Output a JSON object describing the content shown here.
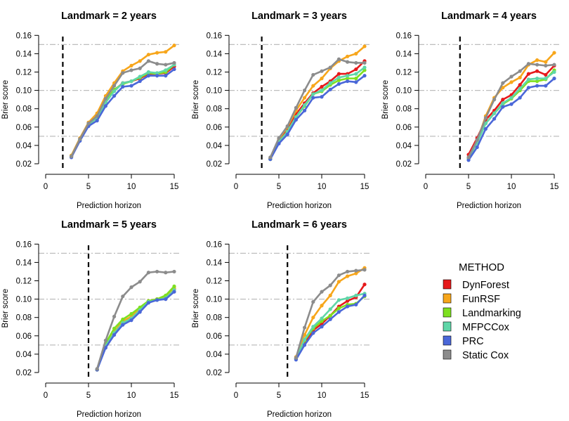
{
  "legend": {
    "title": "METHOD",
    "items": [
      {
        "name": "DynForest",
        "color": "#e6191b"
      },
      {
        "name": "FunRSF",
        "color": "#f7a61b"
      },
      {
        "name": "Landmarking",
        "color": "#7ee020"
      },
      {
        "name": "MFPCCox",
        "color": "#5fd6a8"
      },
      {
        "name": "PRC",
        "color": "#4a67d8"
      },
      {
        "name": "Static Cox",
        "color": "#8c8c8c"
      }
    ]
  },
  "chart_data": [
    {
      "type": "line",
      "title": "Landmark = 2 years",
      "xlabel": "Prediction horizon",
      "ylabel": "Brier score",
      "landmark": 2,
      "xlim": [
        0,
        15
      ],
      "ylim": [
        0.02,
        0.16
      ],
      "xticks": [
        0,
        5,
        10,
        15
      ],
      "yticks": [
        0.02,
        0.04,
        0.06,
        0.08,
        0.1,
        0.12,
        0.14,
        0.16
      ],
      "reference_lines": [
        0.05,
        0.1,
        0.15
      ],
      "x": [
        3,
        4,
        5,
        6,
        7,
        8,
        9,
        10,
        11,
        12,
        13,
        14,
        15
      ],
      "series": [
        {
          "name": "DynForest",
          "values": [
            0.028,
            0.046,
            0.063,
            0.07,
            0.087,
            0.1,
            0.108,
            0.11,
            0.113,
            0.118,
            0.118,
            0.119,
            0.126
          ]
        },
        {
          "name": "FunRSF",
          "values": [
            0.029,
            0.048,
            0.065,
            0.075,
            0.094,
            0.108,
            0.121,
            0.127,
            0.132,
            0.139,
            0.141,
            0.142,
            0.149
          ]
        },
        {
          "name": "Landmarking",
          "values": [
            0.028,
            0.046,
            0.063,
            0.07,
            0.088,
            0.101,
            0.107,
            0.11,
            0.114,
            0.119,
            0.118,
            0.12,
            0.128
          ]
        },
        {
          "name": "MFPCCox",
          "values": [
            0.028,
            0.046,
            0.063,
            0.07,
            0.087,
            0.099,
            0.108,
            0.11,
            0.115,
            0.12,
            0.119,
            0.122,
            0.128
          ]
        },
        {
          "name": "PRC",
          "values": [
            0.027,
            0.045,
            0.061,
            0.067,
            0.083,
            0.094,
            0.104,
            0.105,
            0.11,
            0.116,
            0.116,
            0.116,
            0.123
          ]
        },
        {
          "name": "Static Cox",
          "values": [
            0.028,
            0.047,
            0.064,
            0.072,
            0.091,
            0.105,
            0.119,
            0.122,
            0.124,
            0.132,
            0.129,
            0.128,
            0.13
          ]
        }
      ]
    },
    {
      "type": "line",
      "title": "Landmark = 3 years",
      "xlabel": "Prediction horizon",
      "ylabel": "Brier score",
      "landmark": 3,
      "xlim": [
        0,
        15
      ],
      "ylim": [
        0.02,
        0.16
      ],
      "xticks": [
        0,
        5,
        10,
        15
      ],
      "yticks": [
        0.02,
        0.04,
        0.06,
        0.08,
        0.1,
        0.12,
        0.14,
        0.16
      ],
      "reference_lines": [
        0.05,
        0.1,
        0.15
      ],
      "x": [
        4,
        5,
        6,
        7,
        8,
        9,
        10,
        11,
        12,
        13,
        14,
        15
      ],
      "series": [
        {
          "name": "DynForest",
          "values": [
            0.025,
            0.045,
            0.057,
            0.074,
            0.086,
            0.097,
            0.104,
            0.11,
            0.118,
            0.118,
            0.123,
            0.132
          ]
        },
        {
          "name": "FunRSF",
          "values": [
            0.026,
            0.047,
            0.06,
            0.078,
            0.092,
            0.105,
            0.113,
            0.124,
            0.132,
            0.137,
            0.14,
            0.148
          ]
        },
        {
          "name": "Landmarking",
          "values": [
            0.025,
            0.044,
            0.055,
            0.071,
            0.083,
            0.096,
            0.099,
            0.106,
            0.111,
            0.113,
            0.113,
            0.122
          ]
        },
        {
          "name": "MFPCCox",
          "values": [
            0.025,
            0.044,
            0.055,
            0.071,
            0.084,
            0.096,
            0.1,
            0.108,
            0.114,
            0.116,
            0.118,
            0.125
          ]
        },
        {
          "name": "PRC",
          "values": [
            0.025,
            0.042,
            0.052,
            0.068,
            0.078,
            0.092,
            0.093,
            0.101,
            0.107,
            0.11,
            0.109,
            0.116
          ]
        },
        {
          "name": "Static Cox",
          "values": [
            0.027,
            0.048,
            0.061,
            0.081,
            0.1,
            0.117,
            0.121,
            0.125,
            0.134,
            0.131,
            0.13,
            0.13
          ]
        }
      ]
    },
    {
      "type": "line",
      "title": "Landmark = 4 years",
      "xlabel": "Prediction horizon",
      "ylabel": "Brier score",
      "landmark": 4,
      "xlim": [
        0,
        15
      ],
      "ylim": [
        0.02,
        0.16
      ],
      "xticks": [
        0,
        5,
        10,
        15
      ],
      "yticks": [
        0.02,
        0.04,
        0.06,
        0.08,
        0.1,
        0.12,
        0.14,
        0.16
      ],
      "reference_lines": [
        0.05,
        0.1,
        0.15
      ],
      "x": [
        5,
        6,
        7,
        8,
        9,
        10,
        11,
        12,
        13,
        14,
        15
      ],
      "series": [
        {
          "name": "DynForest",
          "values": [
            0.03,
            0.048,
            0.068,
            0.078,
            0.09,
            0.095,
            0.106,
            0.118,
            0.121,
            0.117,
            0.127
          ]
        },
        {
          "name": "FunRSF",
          "values": [
            0.027,
            0.045,
            0.072,
            0.092,
            0.103,
            0.109,
            0.114,
            0.128,
            0.133,
            0.131,
            0.141
          ]
        },
        {
          "name": "Landmarking",
          "values": [
            0.026,
            0.043,
            0.064,
            0.075,
            0.085,
            0.091,
            0.1,
            0.11,
            0.11,
            0.112,
            0.122
          ]
        },
        {
          "name": "MFPCCox",
          "values": [
            0.026,
            0.043,
            0.064,
            0.075,
            0.086,
            0.092,
            0.102,
            0.112,
            0.113,
            0.113,
            0.12
          ]
        },
        {
          "name": "PRC",
          "values": [
            0.024,
            0.038,
            0.058,
            0.069,
            0.082,
            0.085,
            0.092,
            0.103,
            0.105,
            0.105,
            0.113
          ]
        },
        {
          "name": "Static Cox",
          "values": [
            0.027,
            0.046,
            0.07,
            0.09,
            0.108,
            0.115,
            0.121,
            0.129,
            0.128,
            0.127,
            0.128
          ]
        }
      ]
    },
    {
      "type": "line",
      "title": "Landmark = 5 years",
      "xlabel": "Prediction horizon",
      "ylabel": "Brier score",
      "landmark": 5,
      "xlim": [
        0,
        15
      ],
      "ylim": [
        0.02,
        0.16
      ],
      "xticks": [
        0,
        5,
        10,
        15
      ],
      "yticks": [
        0.02,
        0.04,
        0.06,
        0.08,
        0.1,
        0.12,
        0.14,
        0.16
      ],
      "reference_lines": [
        0.05,
        0.1,
        0.15
      ],
      "x": [
        6,
        7,
        8,
        9,
        10,
        11,
        12,
        13,
        14,
        15
      ],
      "series": [
        {
          "name": "DynForest",
          "values": [
            0.023,
            0.05,
            0.064,
            0.076,
            0.08,
            0.09,
            0.098,
            0.1,
            0.102,
            0.111
          ]
        },
        {
          "name": "FunRSF",
          "values": [
            0.023,
            0.05,
            0.064,
            0.076,
            0.081,
            0.09,
            0.098,
            0.1,
            0.103,
            0.112
          ]
        },
        {
          "name": "Landmarking",
          "values": [
            0.023,
            0.052,
            0.068,
            0.078,
            0.084,
            0.091,
            0.098,
            0.1,
            0.104,
            0.114
          ]
        },
        {
          "name": "MFPCCox",
          "values": [
            0.023,
            0.049,
            0.063,
            0.074,
            0.079,
            0.088,
            0.097,
            0.099,
            0.101,
            0.11
          ]
        },
        {
          "name": "PRC",
          "values": [
            0.023,
            0.047,
            0.061,
            0.072,
            0.077,
            0.086,
            0.096,
            0.099,
            0.1,
            0.108
          ]
        },
        {
          "name": "Static Cox",
          "values": [
            0.024,
            0.055,
            0.081,
            0.103,
            0.113,
            0.119,
            0.129,
            0.13,
            0.129,
            0.13
          ]
        }
      ]
    },
    {
      "type": "line",
      "title": "Landmark = 6 years",
      "xlabel": "Prediction horizon",
      "ylabel": "Brier score",
      "landmark": 6,
      "xlim": [
        0,
        15
      ],
      "ylim": [
        0.02,
        0.16
      ],
      "xticks": [
        0,
        5,
        10,
        15
      ],
      "yticks": [
        0.02,
        0.04,
        0.06,
        0.08,
        0.1,
        0.12,
        0.14,
        0.16
      ],
      "reference_lines": [
        0.05,
        0.1,
        0.15
      ],
      "x": [
        7,
        8,
        9,
        10,
        11,
        12,
        13,
        14,
        15
      ],
      "series": [
        {
          "name": "DynForest",
          "values": [
            0.035,
            0.053,
            0.066,
            0.073,
            0.082,
            0.092,
            0.098,
            0.102,
            0.116
          ]
        },
        {
          "name": "FunRSF",
          "values": [
            0.037,
            0.061,
            0.08,
            0.093,
            0.104,
            0.119,
            0.125,
            0.128,
            0.134
          ]
        },
        {
          "name": "Landmarking",
          "values": [
            0.035,
            0.055,
            0.068,
            0.076,
            0.082,
            0.09,
            0.094,
            0.095,
            0.103
          ]
        },
        {
          "name": "MFPCCox",
          "values": [
            0.035,
            0.056,
            0.07,
            0.079,
            0.089,
            0.099,
            0.101,
            0.104,
            0.106
          ]
        },
        {
          "name": "PRC",
          "values": [
            0.034,
            0.05,
            0.063,
            0.07,
            0.078,
            0.086,
            0.092,
            0.094,
            0.104
          ]
        },
        {
          "name": "Static Cox",
          "values": [
            0.036,
            0.069,
            0.097,
            0.108,
            0.115,
            0.126,
            0.13,
            0.131,
            0.132
          ]
        }
      ]
    }
  ]
}
